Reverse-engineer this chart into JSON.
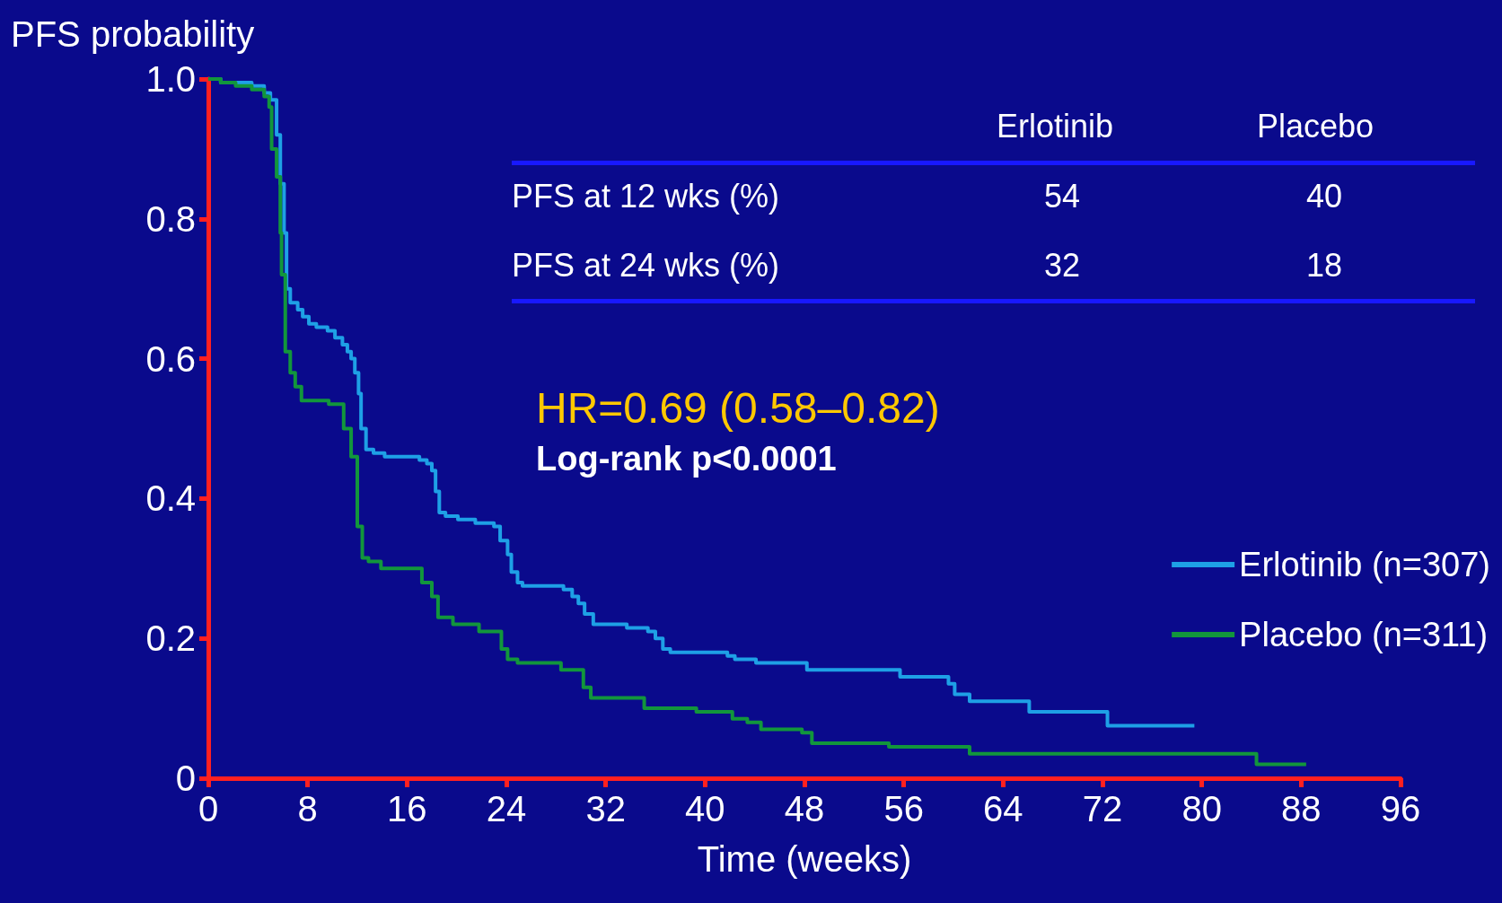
{
  "chart_data": {
    "type": "step",
    "ylabel": "PFS probability",
    "xlabel": "Time (weeks)",
    "xlim": [
      0,
      96
    ],
    "xticks": [
      0,
      8,
      16,
      24,
      32,
      40,
      48,
      56,
      64,
      72,
      80,
      88,
      96
    ],
    "ylim": [
      0,
      1
    ],
    "yticks": [
      0,
      0.2,
      0.4,
      0.6,
      0.8,
      {
        "value": 1,
        "label": "1.0"
      }
    ],
    "grid": false,
    "legend": "right",
    "marker": "none",
    "annotations": [
      "Erlotinib",
      "Placebo",
      "PFS at 12 wks (%)",
      "54",
      "40",
      "PFS at 24 wks (%)",
      "32",
      "18",
      "HR=0.69 (0.58–0.82)",
      "Log-rank p<0.0001"
    ],
    "series": [
      {
        "name": "Erlotinib (n=307)",
        "color": "#1ea0e6",
        "x": [
          0,
          1,
          3.5,
          4.5,
          5,
          5.5,
          5.8,
          6.1,
          6.3,
          6.6,
          7.2,
          7.6,
          8.1,
          8.7,
          9.6,
          10.2,
          10.8,
          11.2,
          11.5,
          11.8,
          12.1,
          12.3,
          12.7,
          13.3,
          14.2,
          17,
          17.6,
          18,
          18.3,
          18.6,
          19.1,
          20.1,
          21.5,
          23,
          23.5,
          24.1,
          24.4,
          24.9,
          25.3,
          28.6,
          29.3,
          29.8,
          30.3,
          31,
          33.7,
          35.4,
          36,
          36.6,
          37.2,
          41.8,
          42.4,
          44.1,
          48.2,
          55.7,
          59.6,
          60.1,
          61.3,
          66.1,
          72.4,
          79.4
        ],
        "values": [
          1,
          0.995,
          0.99,
          0.98,
          0.97,
          0.92,
          0.85,
          0.78,
          0.7,
          0.68,
          0.67,
          0.66,
          0.65,
          0.645,
          0.64,
          0.63,
          0.62,
          0.61,
          0.6,
          0.58,
          0.55,
          0.5,
          0.47,
          0.465,
          0.46,
          0.455,
          0.45,
          0.44,
          0.41,
          0.38,
          0.375,
          0.37,
          0.365,
          0.36,
          0.34,
          0.32,
          0.295,
          0.28,
          0.275,
          0.27,
          0.26,
          0.25,
          0.235,
          0.22,
          0.215,
          0.21,
          0.2,
          0.185,
          0.18,
          0.175,
          0.17,
          0.165,
          0.155,
          0.145,
          0.135,
          0.12,
          0.11,
          0.095,
          0.075,
          0.075
        ]
      },
      {
        "name": "Placebo (n=311)",
        "color": "#12963c",
        "x": [
          0,
          1,
          2.2,
          3.5,
          4.5,
          4.9,
          5.1,
          5.5,
          5.8,
          5.9,
          6.2,
          6.6,
          7,
          7.5,
          9.7,
          10.9,
          11.5,
          12,
          12.4,
          12.9,
          13.9,
          17.2,
          18,
          18.5,
          19.7,
          21.8,
          23.6,
          24.1,
          24.9,
          28.4,
          30.2,
          30.8,
          35.1,
          39.3,
          42.2,
          43.4,
          44.5,
          47.8,
          48.6,
          54.8,
          61.3,
          84.4,
          88.4
        ],
        "values": [
          1,
          0.995,
          0.99,
          0.985,
          0.975,
          0.96,
          0.9,
          0.86,
          0.78,
          0.72,
          0.61,
          0.58,
          0.56,
          0.54,
          0.535,
          0.5,
          0.46,
          0.36,
          0.315,
          0.31,
          0.3,
          0.28,
          0.26,
          0.23,
          0.22,
          0.21,
          0.185,
          0.17,
          0.165,
          0.155,
          0.13,
          0.115,
          0.1,
          0.095,
          0.085,
          0.08,
          0.07,
          0.065,
          0.05,
          0.045,
          0.035,
          0.02,
          0.02
        ]
      }
    ]
  }
}
